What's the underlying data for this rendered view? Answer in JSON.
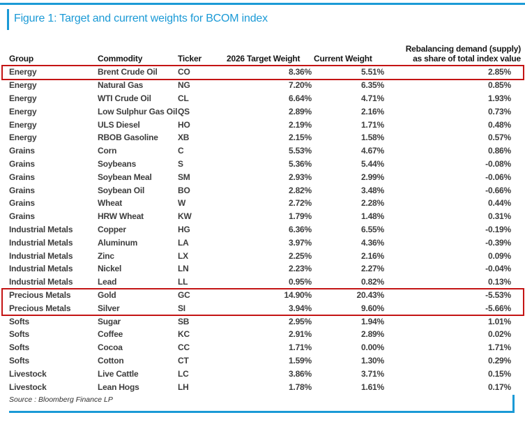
{
  "figure": {
    "title": "Figure 1: Target and current weights for BCOM index"
  },
  "header": {
    "group": "Group",
    "commodity": "Commodity",
    "ticker": "Ticker",
    "target": "2026 Target Weight",
    "current": "Current Weight",
    "rebal_line1": "Rebalancing demand (supply)",
    "rebal_line2": "as share of total index value"
  },
  "source": "Source : Bloomberg Finance LP",
  "colors": {
    "accent_blue": "#1b9ad6",
    "highlight_red": "#c41414",
    "header_text": "#161616",
    "body_text": "#3d3d3d"
  },
  "chart_data": {
    "type": "table",
    "title": "Figure 1: Target and current weights for BCOM index",
    "columns": [
      "Group",
      "Commodity",
      "Ticker",
      "2026 Target Weight",
      "Current Weight",
      "Rebalancing demand (supply) as share of total index value"
    ],
    "rows": [
      [
        "Energy",
        "Brent Crude Oil",
        "CO",
        "8.36%",
        "5.51%",
        "2.85%"
      ],
      [
        "Energy",
        "Natural Gas",
        "NG",
        "7.20%",
        "6.35%",
        "0.85%"
      ],
      [
        "Energy",
        "WTI Crude Oil",
        "CL",
        "6.64%",
        "4.71%",
        "1.93%"
      ],
      [
        "Energy",
        "Low Sulphur Gas Oil",
        "QS",
        "2.89%",
        "2.16%",
        "0.73%"
      ],
      [
        "Energy",
        "ULS Diesel",
        "HO",
        "2.19%",
        "1.71%",
        "0.48%"
      ],
      [
        "Energy",
        "RBOB Gasoline",
        "XB",
        "2.15%",
        "1.58%",
        "0.57%"
      ],
      [
        "Grains",
        "Corn",
        "C",
        "5.53%",
        "4.67%",
        "0.86%"
      ],
      [
        "Grains",
        "Soybeans",
        "S",
        "5.36%",
        "5.44%",
        "-0.08%"
      ],
      [
        "Grains",
        "Soybean Meal",
        "SM",
        "2.93%",
        "2.99%",
        "-0.06%"
      ],
      [
        "Grains",
        "Soybean Oil",
        "BO",
        "2.82%",
        "3.48%",
        "-0.66%"
      ],
      [
        "Grains",
        "Wheat",
        "W",
        "2.72%",
        "2.28%",
        "0.44%"
      ],
      [
        "Grains",
        "HRW Wheat",
        "KW",
        "1.79%",
        "1.48%",
        "0.31%"
      ],
      [
        "Industrial Metals",
        "Copper",
        "HG",
        "6.36%",
        "6.55%",
        "-0.19%"
      ],
      [
        "Industrial Metals",
        "Aluminum",
        "LA",
        "3.97%",
        "4.36%",
        "-0.39%"
      ],
      [
        "Industrial Metals",
        "Zinc",
        "LX",
        "2.25%",
        "2.16%",
        "0.09%"
      ],
      [
        "Industrial Metals",
        "Nickel",
        "LN",
        "2.23%",
        "2.27%",
        "-0.04%"
      ],
      [
        "Industrial Metals",
        "Lead",
        "LL",
        "0.95%",
        "0.82%",
        "0.13%"
      ],
      [
        "Precious Metals",
        "Gold",
        "GC",
        "14.90%",
        "20.43%",
        "-5.53%"
      ],
      [
        "Precious Metals",
        "Silver",
        "SI",
        "3.94%",
        "9.60%",
        "-5.66%"
      ],
      [
        "Softs",
        "Sugar",
        "SB",
        "2.95%",
        "1.94%",
        "1.01%"
      ],
      [
        "Softs",
        "Coffee",
        "KC",
        "2.91%",
        "2.89%",
        "0.02%"
      ],
      [
        "Softs",
        "Cocoa",
        "CC",
        "1.71%",
        "0.00%",
        "1.71%"
      ],
      [
        "Softs",
        "Cotton",
        "CT",
        "1.59%",
        "1.30%",
        "0.29%"
      ],
      [
        "Livestock",
        "Live Cattle",
        "LC",
        "3.86%",
        "3.71%",
        "0.15%"
      ],
      [
        "Livestock",
        "Lean Hogs",
        "LH",
        "1.78%",
        "1.61%",
        "0.17%"
      ]
    ],
    "highlights": [
      {
        "name": "brent-crude-oil-row",
        "start": 0,
        "end": 0
      },
      {
        "name": "precious-metals-rows",
        "start": 17,
        "end": 18
      }
    ],
    "source": "Source : Bloomberg Finance LP",
    "layout_hints": {
      "grid": false,
      "row_striping": false,
      "numeric_columns_right_aligned": true
    }
  }
}
